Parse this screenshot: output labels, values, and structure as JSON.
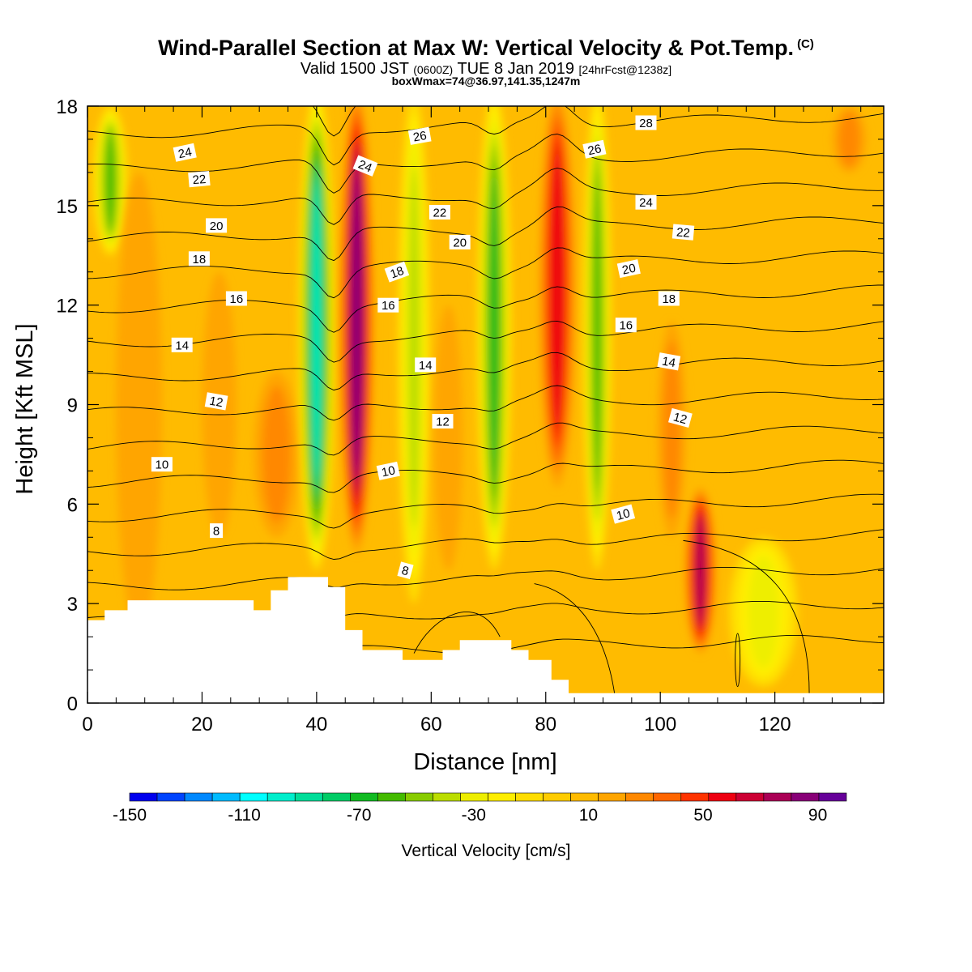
{
  "header": {
    "title": "Wind-Parallel Section at Max W: Vertical Velocity & Pot.Temp.",
    "copyright": "(C)",
    "valid_prefix": "Valid 1500 JST",
    "valid_zulu": "(0600Z)",
    "valid_date": "TUE 8 Jan 2019",
    "forecast_info": "[24hrFcst@1238z]",
    "box_info": "boxWmax=74@36.97,141.35,1247m"
  },
  "chart_data": {
    "type": "heatmap",
    "description_fields": "vertical velocity filled contours with potential temperature line contours",
    "xlabel": "Distance [nm]",
    "ylabel": "Height [Kft MSL]",
    "xlim": [
      0,
      139
    ],
    "ylim": [
      0,
      18
    ],
    "x_ticks": [
      0,
      20,
      40,
      60,
      80,
      100,
      120
    ],
    "y_ticks": [
      0,
      3,
      6,
      9,
      12,
      15,
      18
    ],
    "colorbar": {
      "title": "Vertical Velocity [cm/s]",
      "tick_labels": [
        "-150",
        "-110",
        "-70",
        "-30",
        "10",
        "50",
        "90"
      ],
      "levels": [
        -150,
        -140,
        -130,
        -120,
        -110,
        -100,
        -90,
        -80,
        -70,
        -60,
        -50,
        -40,
        -30,
        -20,
        -10,
        0,
        10,
        20,
        30,
        40,
        50,
        60,
        70,
        80,
        90,
        100
      ],
      "colors": [
        "#0000ee",
        "#0044ff",
        "#0088ff",
        "#00bbff",
        "#00ffff",
        "#00eecc",
        "#00dd99",
        "#00cc66",
        "#11bb22",
        "#44bb00",
        "#88cc00",
        "#bbdd00",
        "#eeee00",
        "#ffee00",
        "#ffdd00",
        "#ffcc00",
        "#ffbb00",
        "#ffa500",
        "#ff8800",
        "#ff6600",
        "#ff3300",
        "#ee0011",
        "#cc0033",
        "#aa0055",
        "#880077",
        "#660099"
      ]
    },
    "w_bands": [
      {
        "x": 4,
        "w": -55,
        "top": 18,
        "bottom": 13.5,
        "halfwidth": 3
      },
      {
        "x": 9,
        "w": 20,
        "top": 16,
        "bottom": 2,
        "halfwidth": 4
      },
      {
        "x": 23,
        "w": 25,
        "top": 13,
        "bottom": 5,
        "halfwidth": 3
      },
      {
        "x": 33,
        "w": 30,
        "top": 10,
        "bottom": 5,
        "halfwidth": 4
      },
      {
        "x": 40,
        "w": -95,
        "top": 18.5,
        "bottom": 4,
        "halfwidth": 3.2
      },
      {
        "x": 47,
        "w": 92,
        "top": 18.5,
        "bottom": 4.5,
        "halfwidth": 3
      },
      {
        "x": 57,
        "w": -40,
        "top": 18.5,
        "bottom": 3,
        "halfwidth": 2.8
      },
      {
        "x": 63,
        "w": 20,
        "top": 12,
        "bottom": 4,
        "halfwidth": 2.5
      },
      {
        "x": 71,
        "w": -62,
        "top": 18.5,
        "bottom": 4,
        "halfwidth": 3
      },
      {
        "x": 82,
        "w": 62,
        "top": 18.5,
        "bottom": 6.5,
        "halfwidth": 3.2
      },
      {
        "x": 89,
        "w": -55,
        "top": 18.5,
        "bottom": 4,
        "halfwidth": 2.5
      },
      {
        "x": 102,
        "w": 30,
        "top": 11.5,
        "bottom": 5,
        "halfwidth": 2.5
      },
      {
        "x": 107,
        "w": 80,
        "top": 6.5,
        "bottom": 1.5,
        "halfwidth": 2.8
      },
      {
        "x": 118,
        "w": -28,
        "top": 5,
        "bottom": 0.5,
        "halfwidth": 6
      },
      {
        "x": 133,
        "w": 30,
        "top": 18,
        "bottom": 16,
        "halfwidth": 3
      }
    ],
    "terrain": [
      [
        0,
        2.5
      ],
      [
        3,
        2.5
      ],
      [
        3,
        2.8
      ],
      [
        7,
        2.8
      ],
      [
        7,
        3.1
      ],
      [
        29,
        3.1
      ],
      [
        29,
        2.8
      ],
      [
        32,
        2.8
      ],
      [
        32,
        3.4
      ],
      [
        35,
        3.4
      ],
      [
        35,
        3.8
      ],
      [
        42,
        3.8
      ],
      [
        42,
        3.5
      ],
      [
        45,
        3.5
      ],
      [
        45,
        2.2
      ],
      [
        48,
        2.2
      ],
      [
        48,
        1.6
      ],
      [
        55,
        1.6
      ],
      [
        55,
        1.3
      ],
      [
        62,
        1.3
      ],
      [
        62,
        1.6
      ],
      [
        65,
        1.6
      ],
      [
        65,
        1.9
      ],
      [
        74,
        1.9
      ],
      [
        74,
        1.6
      ],
      [
        77,
        1.6
      ],
      [
        77,
        1.3
      ],
      [
        81,
        1.3
      ],
      [
        81,
        0.7
      ],
      [
        84,
        0.7
      ],
      [
        84,
        0.3
      ],
      [
        139,
        0.3
      ]
    ],
    "theta_labels": [
      {
        "text": "24",
        "x": 17,
        "y": 16.6,
        "rot": 12
      },
      {
        "text": "22",
        "x": 19.5,
        "y": 15.8,
        "rot": 5
      },
      {
        "text": "20",
        "x": 22.5,
        "y": 14.4,
        "rot": 0
      },
      {
        "text": "18",
        "x": 19.5,
        "y": 13.4,
        "rot": 0
      },
      {
        "text": "16",
        "x": 26,
        "y": 12.2,
        "rot": 0
      },
      {
        "text": "14",
        "x": 16.5,
        "y": 10.8,
        "rot": 0
      },
      {
        "text": "12",
        "x": 22.5,
        "y": 9.1,
        "rot": -10
      },
      {
        "text": "10",
        "x": 13,
        "y": 7.2,
        "rot": 0
      },
      {
        "text": "8",
        "x": 22.5,
        "y": 5.2,
        "rot": 0
      },
      {
        "text": "24",
        "x": 48.5,
        "y": 16.2,
        "rot": -22
      },
      {
        "text": "26",
        "x": 58,
        "y": 17.1,
        "rot": 10
      },
      {
        "text": "22",
        "x": 61.5,
        "y": 14.8,
        "rot": 0
      },
      {
        "text": "20",
        "x": 65,
        "y": 13.9,
        "rot": 0
      },
      {
        "text": "18",
        "x": 54,
        "y": 13,
        "rot": 20
      },
      {
        "text": "16",
        "x": 52.5,
        "y": 12,
        "rot": 0
      },
      {
        "text": "14",
        "x": 59,
        "y": 10.2,
        "rot": 0
      },
      {
        "text": "12",
        "x": 62,
        "y": 8.5,
        "rot": 0
      },
      {
        "text": "10",
        "x": 52.5,
        "y": 7,
        "rot": 12
      },
      {
        "text": "8",
        "x": 55.5,
        "y": 4,
        "rot": -15
      },
      {
        "text": "26",
        "x": 88.5,
        "y": 16.7,
        "rot": 12
      },
      {
        "text": "28",
        "x": 97.5,
        "y": 17.5,
        "rot": 0
      },
      {
        "text": "24",
        "x": 97.5,
        "y": 15.1,
        "rot": 0
      },
      {
        "text": "22",
        "x": 104,
        "y": 14.2,
        "rot": -5
      },
      {
        "text": "20",
        "x": 94.5,
        "y": 13.1,
        "rot": 12
      },
      {
        "text": "18",
        "x": 101.5,
        "y": 12.2,
        "rot": 0
      },
      {
        "text": "16",
        "x": 94,
        "y": 11.4,
        "rot": 0
      },
      {
        "text": "14",
        "x": 101.5,
        "y": 10.3,
        "rot": -10
      },
      {
        "text": "12",
        "x": 103.5,
        "y": 8.6,
        "rot": -15
      },
      {
        "text": "10",
        "x": 93.5,
        "y": 5.7,
        "rot": 15
      }
    ]
  }
}
